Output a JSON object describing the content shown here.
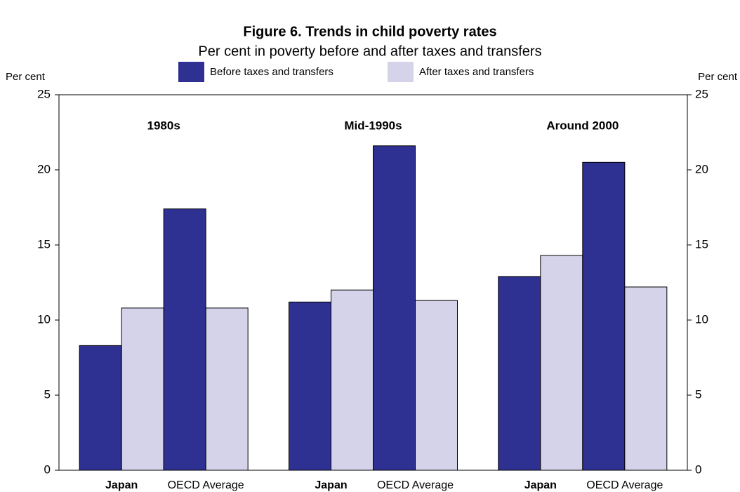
{
  "chart_data": {
    "type": "grouped_bar",
    "title": "Figure 6. Trends in child poverty rates",
    "subtitle": "Per cent in poverty before and after taxes and transfers",
    "y_label": "Per cent",
    "y2_label": "Per cent",
    "groups": [
      "1980s",
      "Mid-1990s",
      "Around 2000"
    ],
    "categories": [
      "Japan",
      "OECD Average",
      "Japan",
      "OECD Average",
      "Japan",
      "OECD Average"
    ],
    "series": [
      {
        "name": "Before taxes and transfers",
        "color": "#2e3192",
        "values": [
          8.3,
          17.4,
          11.2,
          21.6,
          12.9,
          20.5
        ]
      },
      {
        "name": "After taxes and transfers",
        "color": "#d4d3ea",
        "values": [
          10.8,
          10.8,
          12.0,
          11.3,
          14.3,
          12.2
        ]
      }
    ],
    "ylim": [
      0,
      25
    ],
    "yticks": [
      0,
      5,
      10,
      15,
      20,
      25
    ],
    "y2lim": [
      0,
      25
    ],
    "y2ticks": [
      0,
      5,
      10,
      15,
      20,
      25
    ],
    "legend": "top"
  }
}
